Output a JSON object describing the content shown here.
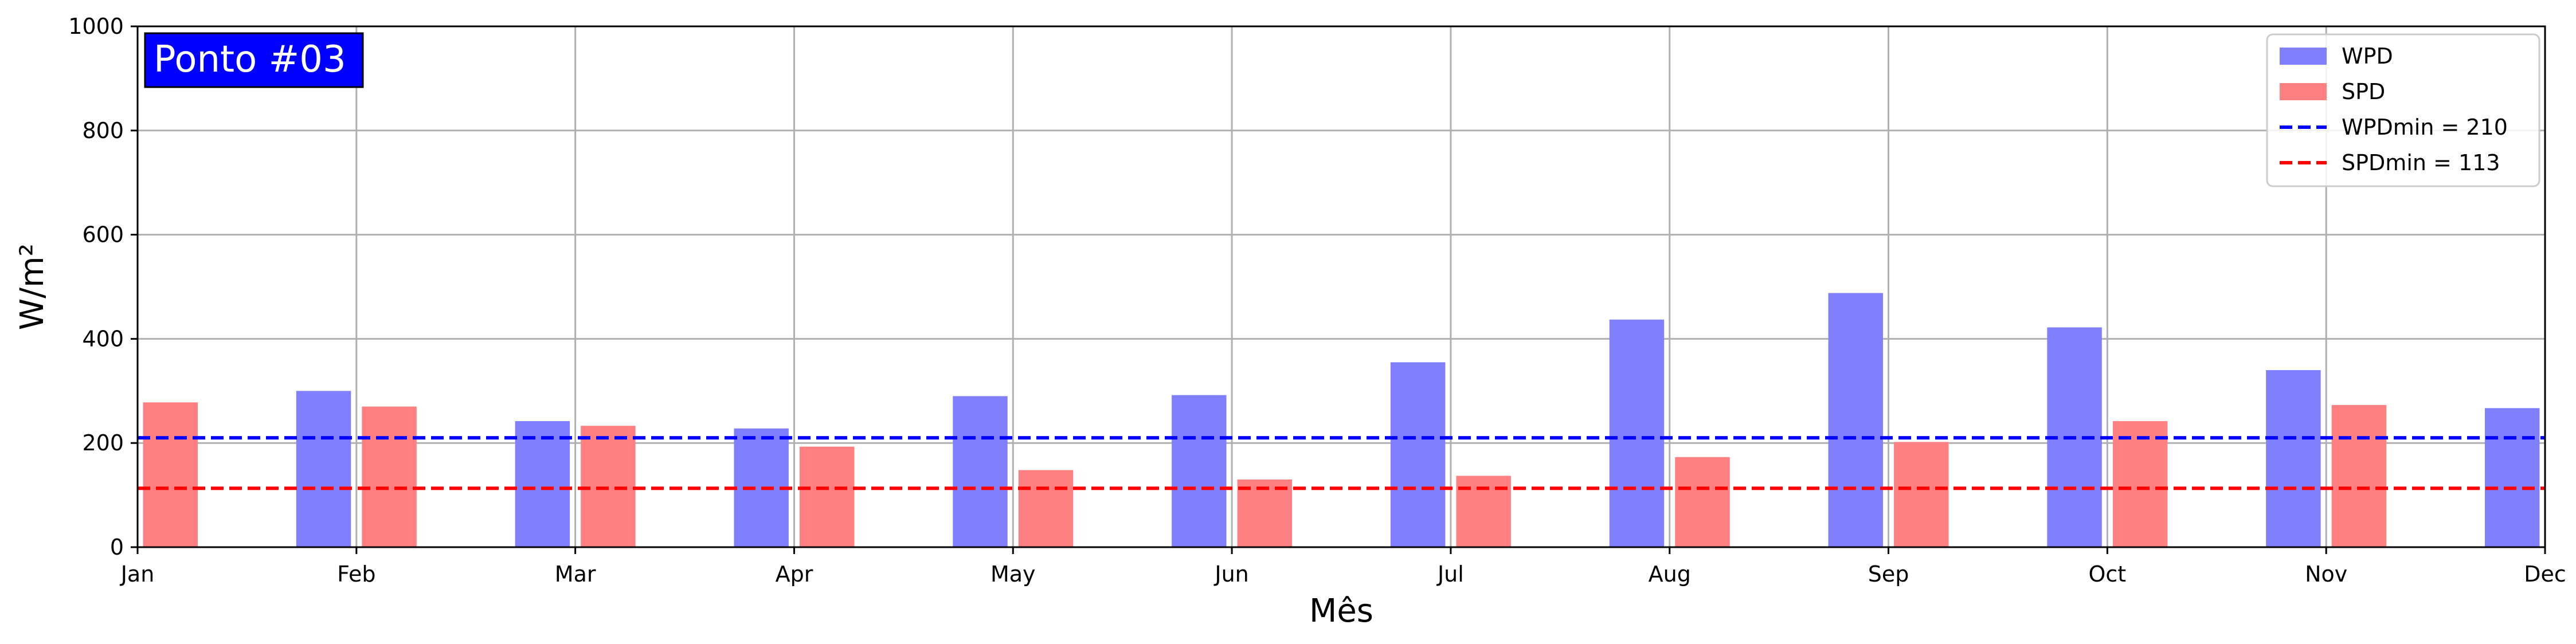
{
  "chart_data": {
    "type": "bar",
    "title": "",
    "annotation": "Ponto #03",
    "annotation_color": "#0000ff",
    "xlabel": "Mês",
    "ylabel": "W/m²",
    "ylim": [
      0,
      1000
    ],
    "yticks": [
      0,
      200,
      400,
      600,
      800,
      1000
    ],
    "ytick_labels": [
      "0",
      "200",
      "400",
      "600",
      "800",
      "1000"
    ],
    "xticks": [
      "Jan",
      "Feb",
      "Mar",
      "Apr",
      "May",
      "Jun",
      "Jul",
      "Aug",
      "Sep",
      "Oct",
      "Nov",
      "Dec"
    ],
    "grid": true,
    "legend_position": "top-right",
    "series": [
      {
        "name": "WPD",
        "color": "#8080ff",
        "points": [
          {
            "x": "Feb",
            "offset": -0.15,
            "value": 300
          },
          {
            "x": "Mar",
            "offset": -0.15,
            "value": 242
          },
          {
            "x": "Apr",
            "offset": -0.15,
            "value": 228
          },
          {
            "x": "May",
            "offset": -0.15,
            "value": 290
          },
          {
            "x": "Jun",
            "offset": -0.15,
            "value": 292
          },
          {
            "x": "Jul",
            "offset": -0.15,
            "value": 355
          },
          {
            "x": "Aug",
            "offset": -0.15,
            "value": 437
          },
          {
            "x": "Sep",
            "offset": -0.15,
            "value": 488
          },
          {
            "x": "Oct",
            "offset": -0.15,
            "value": 422
          },
          {
            "x": "Nov",
            "offset": -0.15,
            "value": 340
          },
          {
            "x": "Dec",
            "offset": -0.15,
            "value": 267
          }
        ]
      },
      {
        "name": "SPD",
        "color": "#ff8080",
        "points": [
          {
            "x": "Jan",
            "offset": 0.15,
            "value": 278
          },
          {
            "x": "Feb",
            "offset": 0.15,
            "value": 270
          },
          {
            "x": "Mar",
            "offset": 0.15,
            "value": 233
          },
          {
            "x": "Apr",
            "offset": 0.15,
            "value": 193
          },
          {
            "x": "May",
            "offset": 0.15,
            "value": 148
          },
          {
            "x": "Jun",
            "offset": 0.15,
            "value": 130
          },
          {
            "x": "Jul",
            "offset": 0.15,
            "value": 137
          },
          {
            "x": "Aug",
            "offset": 0.15,
            "value": 173
          },
          {
            "x": "Sep",
            "offset": 0.15,
            "value": 202
          },
          {
            "x": "Oct",
            "offset": 0.15,
            "value": 242
          },
          {
            "x": "Nov",
            "offset": 0.15,
            "value": 273
          }
        ]
      }
    ],
    "reference_lines": [
      {
        "name": "WPDmin = 210",
        "value": 210,
        "color": "#0000ff",
        "style": "dashed"
      },
      {
        "name": "SPDmin = 113",
        "value": 113,
        "color": "#ff0000",
        "style": "dashed"
      }
    ]
  }
}
